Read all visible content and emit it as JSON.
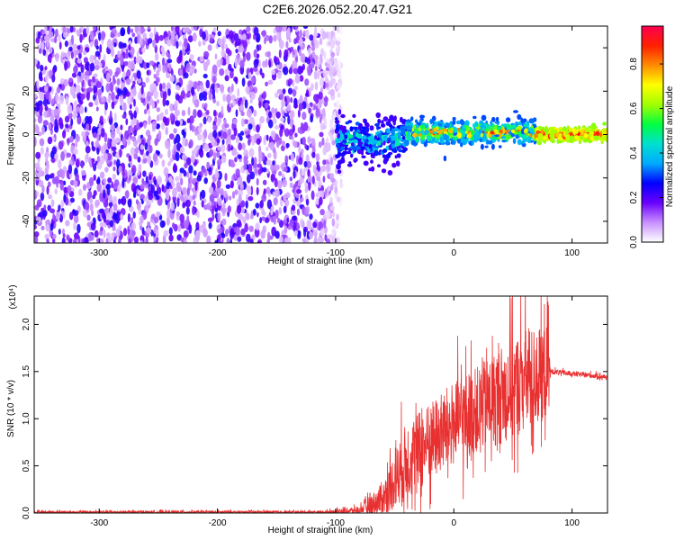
{
  "figure_title": "C2E6.2026.052.20.47.G21",
  "chart_data": [
    {
      "type": "heatmap",
      "title": "C2E6.2026.052.20.47.G21",
      "xlabel": "Height of straight line (km)",
      "ylabel": "Frequency (Hz)",
      "xlim": [
        -355,
        130
      ],
      "ylim": [
        -50,
        50
      ],
      "xticks": [
        -300,
        -200,
        -100,
        0,
        100
      ],
      "xtick_labels": [
        "-300",
        "-200",
        "-100",
        "0",
        "100"
      ],
      "yticks": [
        -40,
        -20,
        0,
        20,
        40
      ],
      "ytick_labels": [
        "-40",
        "-20",
        "0",
        "20",
        "40"
      ],
      "colorbar": {
        "label": "Normalized spectral amplitude",
        "range": [
          0,
          0.97
        ],
        "ticks": [
          0,
          0.2,
          0.4,
          0.6,
          0.8
        ],
        "tick_labels": [
          "0.0",
          "0.2",
          "0.4",
          "0.6",
          "0.8"
        ],
        "colormap": [
          "#ffffff",
          "#c890ff",
          "#6a00ff",
          "#0000ff",
          "#00aaff",
          "#00e0d0",
          "#00ff40",
          "#a0ff00",
          "#ffff00",
          "#ff8c00",
          "#ff2000",
          "#ff0050"
        ]
      },
      "regions": [
        {
          "name": "noise",
          "x_range": [
            -355,
            -95
          ],
          "y_range": [
            -50,
            50
          ],
          "amplitude_range": [
            0.05,
            0.25
          ]
        },
        {
          "name": "transition",
          "x_range": [
            -100,
            -40
          ],
          "center_freq": -2,
          "spread_hz": 10,
          "amplitude_range": [
            0.2,
            0.5
          ]
        },
        {
          "name": "signal",
          "x_range": [
            -40,
            70
          ],
          "center_freq": 1,
          "spread_hz": 5,
          "amplitude_range": [
            0.3,
            0.9
          ]
        },
        {
          "name": "tone",
          "x_range": [
            70,
            130
          ],
          "center_freq": 0,
          "spread_hz": 3,
          "amplitude_range": [
            0.6,
            0.95
          ]
        }
      ]
    },
    {
      "type": "line",
      "xlabel": "Height of straight line (km)",
      "ylabel": "SNR (10 * v/v)",
      "y_multiplier": "(x10⁴)",
      "xlim": [
        -355,
        130
      ],
      "ylim": [
        0,
        2.3
      ],
      "xticks": [
        -300,
        -200,
        -100,
        0,
        100
      ],
      "xtick_labels": [
        "-300",
        "-200",
        "-100",
        "0",
        "100"
      ],
      "yticks": [
        0,
        0.5,
        1.0,
        1.5,
        2.0
      ],
      "ytick_labels": [
        "0.0",
        "0.5",
        "1.0",
        "1.5",
        "2.0"
      ],
      "color": "#e83030",
      "envelope": [
        {
          "x": -355,
          "mean": 0.01,
          "spread": 0.02
        },
        {
          "x": -110,
          "mean": 0.01,
          "spread": 0.02
        },
        {
          "x": -80,
          "mean": 0.03,
          "spread": 0.05
        },
        {
          "x": -60,
          "mean": 0.15,
          "spread": 0.25
        },
        {
          "x": -50,
          "mean": 0.35,
          "spread": 0.45
        },
        {
          "x": -40,
          "mean": 0.55,
          "spread": 0.6
        },
        {
          "x": -20,
          "mean": 0.75,
          "spread": 0.6
        },
        {
          "x": 0,
          "mean": 0.95,
          "spread": 0.65
        },
        {
          "x": 20,
          "mean": 1.1,
          "spread": 0.65
        },
        {
          "x": 40,
          "mean": 1.25,
          "spread": 0.75
        },
        {
          "x": 60,
          "mean": 1.4,
          "spread": 0.8
        },
        {
          "x": 80,
          "mean": 1.5,
          "spread": 0.7
        },
        {
          "x": 82,
          "mean": 1.5,
          "spread": 0.04
        },
        {
          "x": 130,
          "mean": 1.44,
          "spread": 0.04
        }
      ]
    }
  ]
}
